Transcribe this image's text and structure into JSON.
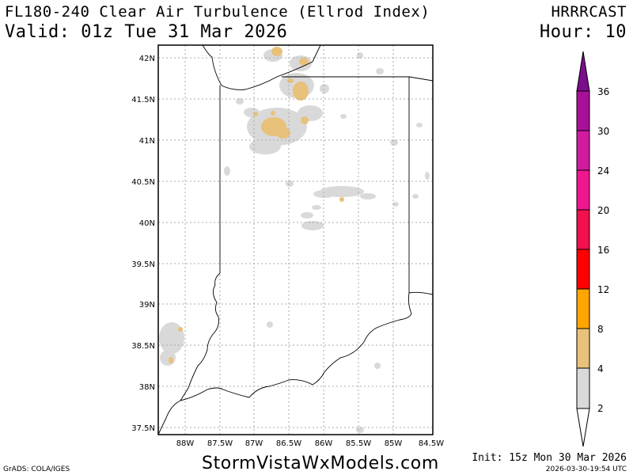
{
  "header": {
    "title": "FL180-240 Clear Air Turbulence (Ellrod Index)",
    "valid": "Valid: 01z Tue 31 Mar 2026",
    "model": "HRRRCAST",
    "hour": "Hour: 10"
  },
  "map": {
    "lat_labels": [
      "42N",
      "41.5N",
      "41N",
      "40.5N",
      "40N",
      "39.5N",
      "39N",
      "38.5N",
      "38N",
      "37.5N"
    ],
    "lon_labels": [
      "88W",
      "87.5W",
      "87W",
      "86.5W",
      "86W",
      "85.5W",
      "85W",
      "84.5W"
    ],
    "gridlines": true,
    "region": "Indiana"
  },
  "colorbar": {
    "ticks": [
      "2",
      "4",
      "8",
      "12",
      "16",
      "20",
      "24",
      "30",
      "36"
    ],
    "colors": [
      "#d9d9d9",
      "#e8c17a",
      "#ffa500",
      "#ff0000",
      "#f0114d",
      "#ef1790",
      "#d01aa0",
      "#a8109a",
      "#7a0e8c"
    ]
  },
  "footer": {
    "website": "StormVistaWxModels.com",
    "grads": "GrADS: COLA/IGES",
    "init": "Init: 15z Mon 30 Mar 2026",
    "timestamp": "2026-03-30-19:54 UTC"
  }
}
